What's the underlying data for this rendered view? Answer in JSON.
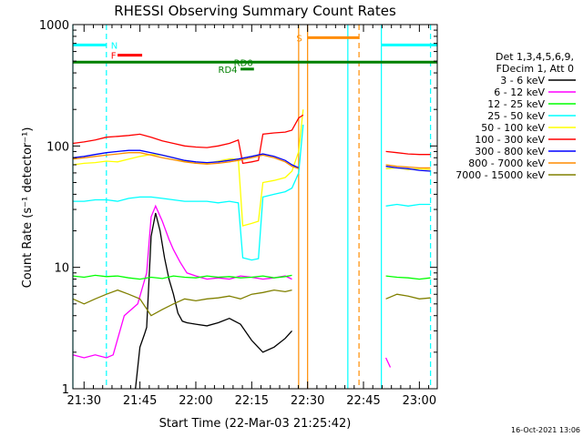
{
  "chart_data": {
    "type": "line",
    "title": "RHESSI Observing Summary Count Rates",
    "xlabel": "Start Time (22-Mar-03 21:25:42)",
    "ylabel": "Count Rate (s⁻¹ detector⁻¹)",
    "yscale": "log",
    "ylim": [
      1,
      1000
    ],
    "xlim_minutes": [
      21.45,
      23.08
    ],
    "x_ticks": [
      "21:30",
      "21:45",
      "22:00",
      "22:15",
      "22:30",
      "22:45",
      "23:00"
    ],
    "y_ticks": [
      "1",
      "10",
      "100",
      "1000"
    ],
    "legend_header": [
      "Det 1,3,4,5,6,9,",
      "FDecim 1, Att 0"
    ],
    "legend_placement": "right",
    "timestamp": "16-Oct-2021 13:06",
    "series": [
      {
        "name": "3 - 6 keV",
        "color": "#000000",
        "points": [
          [
            21.73,
            1.0
          ],
          [
            21.75,
            2.2
          ],
          [
            21.77,
            2.8
          ],
          [
            21.78,
            3.2
          ],
          [
            21.8,
            18
          ],
          [
            21.82,
            28
          ],
          [
            21.84,
            20
          ],
          [
            21.86,
            12
          ],
          [
            21.88,
            8
          ],
          [
            21.9,
            6
          ],
          [
            21.92,
            4.2
          ],
          [
            21.94,
            3.6
          ],
          [
            21.96,
            3.5
          ],
          [
            22.0,
            3.4
          ],
          [
            22.05,
            3.3
          ],
          [
            22.1,
            3.5
          ],
          [
            22.15,
            3.8
          ],
          [
            22.2,
            3.4
          ],
          [
            22.25,
            2.5
          ],
          [
            22.3,
            2.0
          ],
          [
            22.35,
            2.2
          ],
          [
            22.4,
            2.6
          ],
          [
            22.43,
            3.0
          ]
        ]
      },
      {
        "name": "6 - 12 keV",
        "color": "#ff00ff",
        "points": [
          [
            21.45,
            1.9
          ],
          [
            21.5,
            1.8
          ],
          [
            21.55,
            1.9
          ],
          [
            21.6,
            1.8
          ],
          [
            21.63,
            1.9
          ],
          [
            21.68,
            4.0
          ],
          [
            21.74,
            5.0
          ],
          [
            21.78,
            9
          ],
          [
            21.8,
            26
          ],
          [
            21.82,
            32
          ],
          [
            21.85,
            24
          ],
          [
            21.88,
            17
          ],
          [
            21.9,
            14
          ],
          [
            21.93,
            11
          ],
          [
            21.96,
            9
          ],
          [
            22.0,
            8.5
          ],
          [
            22.05,
            8.0
          ],
          [
            22.1,
            8.2
          ],
          [
            22.15,
            8.0
          ],
          [
            22.2,
            8.5
          ],
          [
            22.25,
            8.3
          ],
          [
            22.3,
            8.0
          ],
          [
            22.35,
            8.2
          ],
          [
            22.4,
            8.5
          ],
          [
            22.43,
            8.0
          ],
          [
            22.85,
            1.8
          ],
          [
            22.87,
            1.5
          ]
        ]
      },
      {
        "name": "12 - 25 keV",
        "color": "#00ff00",
        "points": [
          [
            21.45,
            8.5
          ],
          [
            21.5,
            8.3
          ],
          [
            21.55,
            8.6
          ],
          [
            21.6,
            8.4
          ],
          [
            21.65,
            8.5
          ],
          [
            21.7,
            8.2
          ],
          [
            21.75,
            8.0
          ],
          [
            21.8,
            8.3
          ],
          [
            21.85,
            8.1
          ],
          [
            21.9,
            8.5
          ],
          [
            21.95,
            8.3
          ],
          [
            22.0,
            8.2
          ],
          [
            22.05,
            8.5
          ],
          [
            22.1,
            8.3
          ],
          [
            22.15,
            8.4
          ],
          [
            22.2,
            8.2
          ],
          [
            22.25,
            8.3
          ],
          [
            22.3,
            8.5
          ],
          [
            22.35,
            8.2
          ],
          [
            22.4,
            8.4
          ],
          [
            22.43,
            8.6
          ],
          [
            22.85,
            8.5
          ],
          [
            22.9,
            8.3
          ],
          [
            22.95,
            8.2
          ],
          [
            23.0,
            8.0
          ],
          [
            23.05,
            8.2
          ]
        ]
      },
      {
        "name": "25 - 50 keV",
        "color": "#00ffff",
        "points": [
          [
            21.45,
            35
          ],
          [
            21.5,
            35
          ],
          [
            21.55,
            36
          ],
          [
            21.6,
            36
          ],
          [
            21.65,
            35
          ],
          [
            21.7,
            37
          ],
          [
            21.75,
            38
          ],
          [
            21.8,
            38
          ],
          [
            21.85,
            37
          ],
          [
            21.9,
            36
          ],
          [
            21.95,
            35
          ],
          [
            22.0,
            35
          ],
          [
            22.05,
            35
          ],
          [
            22.1,
            34
          ],
          [
            22.15,
            35
          ],
          [
            22.19,
            34
          ],
          [
            22.21,
            12
          ],
          [
            22.25,
            11.5
          ],
          [
            22.28,
            11.8
          ],
          [
            22.3,
            38
          ],
          [
            22.35,
            40
          ],
          [
            22.4,
            42
          ],
          [
            22.43,
            45
          ],
          [
            22.46,
            60
          ],
          [
            22.48,
            150
          ],
          [
            22.85,
            32
          ],
          [
            22.9,
            33
          ],
          [
            22.95,
            32
          ],
          [
            23.0,
            33
          ],
          [
            23.05,
            33
          ]
        ]
      },
      {
        "name": "50 - 100 keV",
        "color": "#ffff00",
        "points": [
          [
            21.45,
            70
          ],
          [
            21.5,
            72
          ],
          [
            21.55,
            73
          ],
          [
            21.6,
            75
          ],
          [
            21.65,
            74
          ],
          [
            21.7,
            78
          ],
          [
            21.75,
            82
          ],
          [
            21.8,
            85
          ],
          [
            21.85,
            84
          ],
          [
            21.9,
            80
          ],
          [
            21.95,
            75
          ],
          [
            22.0,
            72
          ],
          [
            22.05,
            72
          ],
          [
            22.1,
            75
          ],
          [
            22.15,
            78
          ],
          [
            22.19,
            78
          ],
          [
            22.21,
            22
          ],
          [
            22.25,
            23
          ],
          [
            22.28,
            24
          ],
          [
            22.3,
            50
          ],
          [
            22.35,
            52
          ],
          [
            22.4,
            55
          ],
          [
            22.43,
            62
          ],
          [
            22.46,
            90
          ],
          [
            22.48,
            200
          ],
          [
            22.85,
            65
          ],
          [
            22.9,
            66
          ],
          [
            22.95,
            64
          ],
          [
            23.0,
            65
          ],
          [
            23.05,
            64
          ]
        ]
      },
      {
        "name": "100 - 300 keV",
        "color": "#ff0000",
        "points": [
          [
            21.45,
            105
          ],
          [
            21.5,
            108
          ],
          [
            21.55,
            112
          ],
          [
            21.6,
            118
          ],
          [
            21.65,
            120
          ],
          [
            21.7,
            122
          ],
          [
            21.75,
            125
          ],
          [
            21.8,
            118
          ],
          [
            21.85,
            110
          ],
          [
            21.9,
            105
          ],
          [
            21.95,
            100
          ],
          [
            22.0,
            98
          ],
          [
            22.05,
            97
          ],
          [
            22.1,
            100
          ],
          [
            22.15,
            105
          ],
          [
            22.19,
            112
          ],
          [
            22.21,
            72
          ],
          [
            22.25,
            74
          ],
          [
            22.28,
            76
          ],
          [
            22.3,
            125
          ],
          [
            22.35,
            128
          ],
          [
            22.4,
            130
          ],
          [
            22.43,
            135
          ],
          [
            22.46,
            170
          ],
          [
            22.48,
            180
          ],
          [
            22.85,
            90
          ],
          [
            22.9,
            88
          ],
          [
            22.95,
            86
          ],
          [
            23.0,
            85
          ],
          [
            23.05,
            85
          ]
        ]
      },
      {
        "name": "300 - 800 keV",
        "color": "#0000ff",
        "points": [
          [
            21.45,
            80
          ],
          [
            21.5,
            82
          ],
          [
            21.55,
            85
          ],
          [
            21.6,
            88
          ],
          [
            21.65,
            90
          ],
          [
            21.7,
            92
          ],
          [
            21.75,
            92
          ],
          [
            21.8,
            88
          ],
          [
            21.85,
            84
          ],
          [
            21.9,
            80
          ],
          [
            21.95,
            76
          ],
          [
            22.0,
            74
          ],
          [
            22.05,
            73
          ],
          [
            22.1,
            74
          ],
          [
            22.15,
            76
          ],
          [
            22.19,
            78
          ],
          [
            22.25,
            82
          ],
          [
            22.3,
            86
          ],
          [
            22.35,
            82
          ],
          [
            22.4,
            76
          ],
          [
            22.43,
            70
          ],
          [
            22.46,
            66
          ],
          [
            22.85,
            68
          ],
          [
            22.9,
            66
          ],
          [
            22.95,
            65
          ],
          [
            23.0,
            63
          ],
          [
            23.05,
            62
          ]
        ]
      },
      {
        "name": "800 - 7000 keV",
        "color": "#ff8c00",
        "points": [
          [
            21.45,
            78
          ],
          [
            21.5,
            80
          ],
          [
            21.55,
            82
          ],
          [
            21.6,
            84
          ],
          [
            21.65,
            86
          ],
          [
            21.7,
            88
          ],
          [
            21.75,
            88
          ],
          [
            21.8,
            84
          ],
          [
            21.85,
            80
          ],
          [
            21.9,
            77
          ],
          [
            21.95,
            74
          ],
          [
            22.0,
            72
          ],
          [
            22.05,
            71
          ],
          [
            22.1,
            72
          ],
          [
            22.15,
            74
          ],
          [
            22.19,
            76
          ],
          [
            22.25,
            80
          ],
          [
            22.3,
            84
          ],
          [
            22.35,
            80
          ],
          [
            22.4,
            74
          ],
          [
            22.43,
            68
          ],
          [
            22.46,
            65
          ],
          [
            22.85,
            70
          ],
          [
            22.9,
            68
          ],
          [
            22.95,
            67
          ],
          [
            23.0,
            66
          ],
          [
            23.05,
            66
          ]
        ]
      },
      {
        "name": "7000 - 15000 keV",
        "color": "#808000",
        "points": [
          [
            21.45,
            5.5
          ],
          [
            21.5,
            5.0
          ],
          [
            21.55,
            5.5
          ],
          [
            21.6,
            6.0
          ],
          [
            21.65,
            6.5
          ],
          [
            21.7,
            6.0
          ],
          [
            21.75,
            5.5
          ],
          [
            21.8,
            4.0
          ],
          [
            21.85,
            4.5
          ],
          [
            21.9,
            5.0
          ],
          [
            21.95,
            5.5
          ],
          [
            22.0,
            5.3
          ],
          [
            22.05,
            5.5
          ],
          [
            22.1,
            5.6
          ],
          [
            22.15,
            5.8
          ],
          [
            22.2,
            5.5
          ],
          [
            22.25,
            6.0
          ],
          [
            22.3,
            6.2
          ],
          [
            22.35,
            6.5
          ],
          [
            22.4,
            6.3
          ],
          [
            22.43,
            6.5
          ],
          [
            22.85,
            5.5
          ],
          [
            22.9,
            6.0
          ],
          [
            22.95,
            5.8
          ],
          [
            23.0,
            5.5
          ],
          [
            23.05,
            5.6
          ]
        ]
      }
    ],
    "flag_bars": [
      {
        "label": "N",
        "color": "#00ffff",
        "y_level": 680,
        "segments": [
          [
            21.45,
            21.6
          ]
        ],
        "label_x": 21.62
      },
      {
        "label": "N",
        "color": "#00ffff",
        "y_level": 680,
        "segments": [
          [
            22.83,
            23.08
          ]
        ],
        "label_x": null
      },
      {
        "label": "F",
        "color": "#ff0000",
        "y_level": 560,
        "segments": [
          [
            21.65,
            21.76
          ]
        ],
        "label_x": 21.62
      },
      {
        "label": "RD0",
        "color": "#008000",
        "y_level": 490,
        "segments": [
          [
            21.45,
            23.08
          ]
        ],
        "label_x": 22.17
      },
      {
        "label": "RD4",
        "color": "#008000",
        "y_level": 430,
        "segments": [
          [
            22.2,
            22.26
          ]
        ],
        "label_x": 22.1
      },
      {
        "label": "S",
        "color": "#ff8c00",
        "y_level": 780,
        "segments": [
          [
            22.5,
            22.73
          ]
        ],
        "label_x": 22.45
      }
    ],
    "vertical_lines": [
      {
        "x": 21.45,
        "color": "#00ffff",
        "style": "solid"
      },
      {
        "x": 21.6,
        "color": "#00ffff",
        "style": "dashed"
      },
      {
        "x": 22.46,
        "color": "#ff8c00",
        "style": "solid"
      },
      {
        "x": 22.5,
        "color": "#ff8c00",
        "style": "solid"
      },
      {
        "x": 22.73,
        "color": "#ff8c00",
        "style": "dashed"
      },
      {
        "x": 22.68,
        "color": "#00ffff",
        "style": "solid"
      },
      {
        "x": 22.83,
        "color": "#00ffff",
        "style": "solid"
      },
      {
        "x": 23.05,
        "color": "#00ffff",
        "style": "dashed"
      }
    ],
    "grid": false,
    "background": "#ffffff",
    "axis_color": "#000000"
  }
}
